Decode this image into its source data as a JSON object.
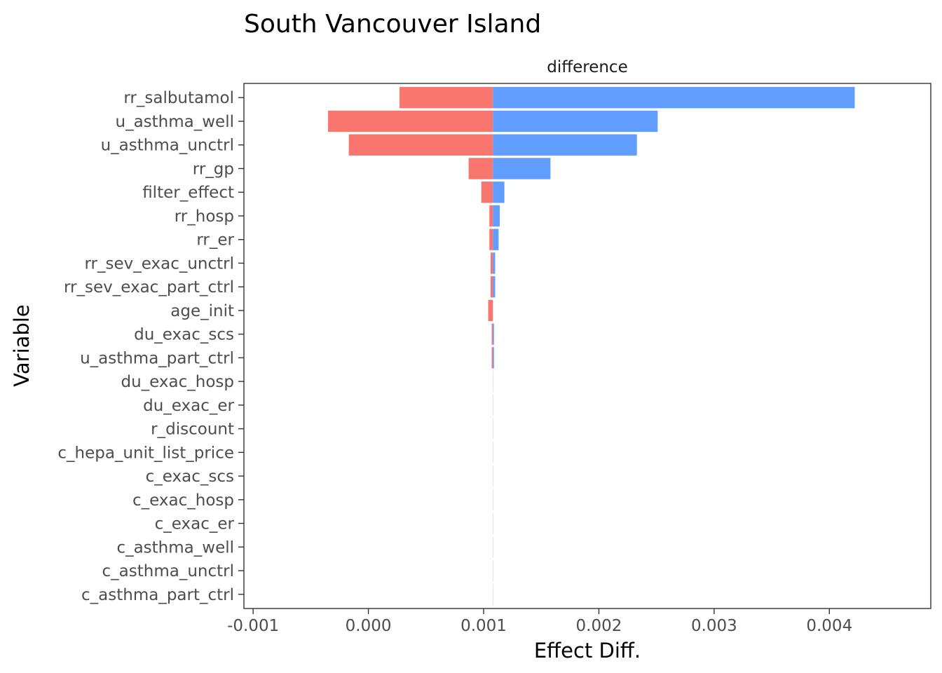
{
  "chart_data": {
    "type": "bar",
    "orientation": "horizontal",
    "title": "South Vancouver Island",
    "facet_label": "difference",
    "xlabel": "Effect Diff.",
    "ylabel": "Variable",
    "base": 0.00108,
    "xlim": [
      -0.00108,
      0.00488
    ],
    "x_ticks": [
      -0.001,
      0.0,
      0.001,
      0.002,
      0.003,
      0.004
    ],
    "x_tick_labels": [
      "-0.001",
      "0.000",
      "0.001",
      "0.002",
      "0.003",
      "0.004"
    ],
    "grid": false,
    "legend": "none",
    "colors": {
      "low": "#F8766D",
      "high": "#619CFF",
      "panel_border": "#333333",
      "tick": "#333333"
    },
    "categories": [
      "rr_salbutamol",
      "u_asthma_well",
      "u_asthma_unctrl",
      "rr_gp",
      "filter_effect",
      "rr_hosp",
      "rr_er",
      "rr_sev_exac_unctrl",
      "rr_sev_exac_part_ctrl",
      "age_init",
      "du_exac_scs",
      "u_asthma_part_ctrl",
      "du_exac_hosp",
      "du_exac_er",
      "r_discount",
      "c_hepa_unit_list_price",
      "c_exac_scs",
      "c_exac_hosp",
      "c_exac_er",
      "c_asthma_well",
      "c_asthma_unctrl",
      "c_asthma_part_ctrl"
    ],
    "series": [
      {
        "key": "low",
        "values": [
          0.00027,
          -0.00035,
          -0.00017,
          0.00087,
          0.00098,
          0.00105,
          0.00105,
          0.00106,
          0.00106,
          0.00104,
          0.00107,
          0.00107,
          0.00108,
          0.00108,
          0.00108,
          0.00108,
          0.00108,
          0.00108,
          0.00108,
          0.00108,
          0.00108,
          0.00108
        ]
      },
      {
        "key": "high",
        "values": [
          0.00422,
          0.00251,
          0.00233,
          0.00158,
          0.00118,
          0.00114,
          0.00113,
          0.0011,
          0.0011,
          0.00108,
          0.00109,
          0.00109,
          0.00108,
          0.00108,
          0.00108,
          0.00108,
          0.00108,
          0.00108,
          0.00108,
          0.00108,
          0.00108,
          0.00108
        ]
      }
    ]
  }
}
